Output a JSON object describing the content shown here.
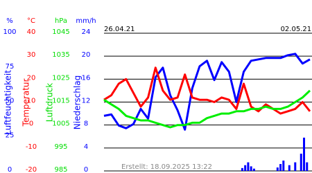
{
  "chart_data": {
    "type": "line",
    "footer": "Erstellt: 18.09.2025 13:22",
    "xlim": [
      0,
      7
    ],
    "xticks": [
      {
        "value": 0,
        "label": "26.04.21"
      },
      {
        "value": 6,
        "label": "02.05.21"
      }
    ],
    "grid": true,
    "y_axes": [
      {
        "unit": "%",
        "title": "Luftfeuchtigkeit",
        "color": "#0000ff",
        "ylim": [
          0,
          100
        ],
        "yticks": [
          0,
          25,
          50,
          75,
          100
        ]
      },
      {
        "unit": "°C",
        "title": "Temperatur",
        "color": "#ff0000",
        "ylim": [
          -20,
          40
        ],
        "yticks": [
          -20,
          -10,
          0,
          10,
          20,
          30,
          40
        ]
      },
      {
        "unit": "hPa",
        "title": "Luftdruck",
        "color": "#00dd00",
        "ylim": [
          985,
          1045
        ],
        "yticks": [
          985,
          995,
          1005,
          1015,
          1025,
          1035,
          1045
        ]
      },
      {
        "unit": "mm/h",
        "title": "Niederschlag",
        "color": "#0000ff",
        "ylim": [
          0,
          24
        ],
        "yticks": [
          0,
          4,
          8,
          12,
          16,
          20,
          24
        ]
      }
    ],
    "x": [
      0,
      0.25,
      0.5,
      0.75,
      1,
      1.25,
      1.5,
      1.75,
      2,
      2.25,
      2.5,
      2.75,
      3,
      3.25,
      3.5,
      3.75,
      4,
      4.25,
      4.5,
      4.75,
      5,
      5.25,
      5.5,
      5.75,
      6,
      6.25,
      6.5,
      6.75,
      7
    ],
    "series": [
      {
        "color": "#0000ff",
        "axis": 0,
        "values": [
          40,
          41,
          33,
          31,
          34,
          45,
          38,
          68,
          75,
          55,
          44,
          30,
          60,
          76,
          80,
          66,
          79,
          72,
          50,
          72,
          80,
          81,
          82,
          82,
          82,
          84,
          85,
          78,
          81
        ]
      },
      {
        "color": "#ff0000",
        "axis": 1,
        "values": [
          11,
          13,
          18,
          20,
          14,
          8,
          12,
          25,
          15,
          11,
          12,
          22,
          12,
          11,
          11,
          10,
          12,
          11,
          7,
          18,
          8,
          6,
          9,
          7,
          5,
          6,
          7,
          10,
          6
        ]
      },
      {
        "color": "#00ee00",
        "axis": 2,
        "values": [
          1016,
          1014,
          1012,
          1009,
          1008,
          1007,
          1007,
          1006,
          1005,
          1004,
          1005,
          1005,
          1006,
          1006,
          1008,
          1009,
          1010,
          1010,
          1011,
          1011,
          1012,
          1012,
          1013,
          1012,
          1012,
          1013,
          1015,
          1017,
          1020
        ]
      }
    ],
    "rain": {
      "color": "#0000ff",
      "axis": 3,
      "x": [
        4.7,
        4.8,
        4.9,
        5.0,
        5.1,
        5.9,
        6.0,
        6.1,
        6.3,
        6.5,
        6.7,
        6.8,
        6.9
      ],
      "values": [
        0.5,
        1,
        1.5,
        0.8,
        0.4,
        0.6,
        1.2,
        1.8,
        1,
        1.5,
        3,
        5.8,
        1.5
      ]
    }
  }
}
